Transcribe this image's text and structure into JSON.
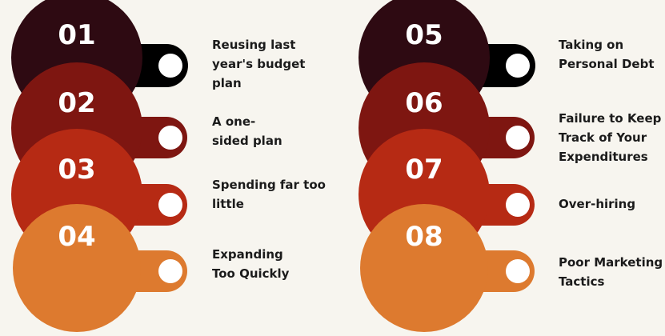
{
  "items": [
    {
      "number": "01",
      "text": "Reusing last\nyear's budget\nplan",
      "color": "#2e0a12"
    },
    {
      "number": "02",
      "text": "A one-\nsided plan",
      "color": "#7e1611"
    },
    {
      "number": "03",
      "text": "Spending far too\nlittle",
      "color": "#b62a14"
    },
    {
      "number": "04",
      "text": "Expanding\nToo Quickly",
      "color": "#dd7a2f"
    },
    {
      "number": "05",
      "text": "Taking on\nPersonal Debt",
      "color": "#2e0a12"
    },
    {
      "number": "06",
      "text": "Failure to Keep\nTrack of Your\nExpenditures",
      "color": "#7e1611"
    },
    {
      "number": "07",
      "text": "Over-hiring",
      "color": "#b62a14"
    },
    {
      "number": "08",
      "text": "Poor Marketing\nTactics",
      "color": "#dd7a2f"
    }
  ],
  "tab_dark_color": "#000000"
}
